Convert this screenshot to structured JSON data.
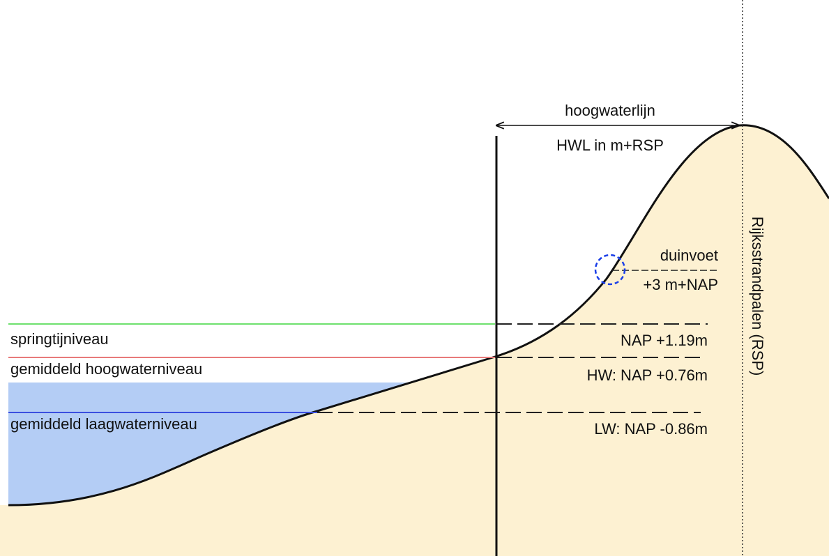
{
  "levels": [
    {
      "name": "springtijniveau",
      "value_label": "NAP +1.19m"
    },
    {
      "name": "gemiddeld hoogwaterniveau",
      "value_label": "HW: NAP +0.76m"
    },
    {
      "name": "gemiddeld laagwaterniveau",
      "value_label": "LW: NAP -0.86m"
    }
  ],
  "hoogwaterlijn": {
    "title": "hoogwaterlijn",
    "subtitle": "HWL in m+RSP"
  },
  "duinvoet": {
    "title": "duinvoet",
    "subtitle": "+3 m+NAP"
  },
  "rsp_label": "Rijksstrandpalen (RSP)"
}
